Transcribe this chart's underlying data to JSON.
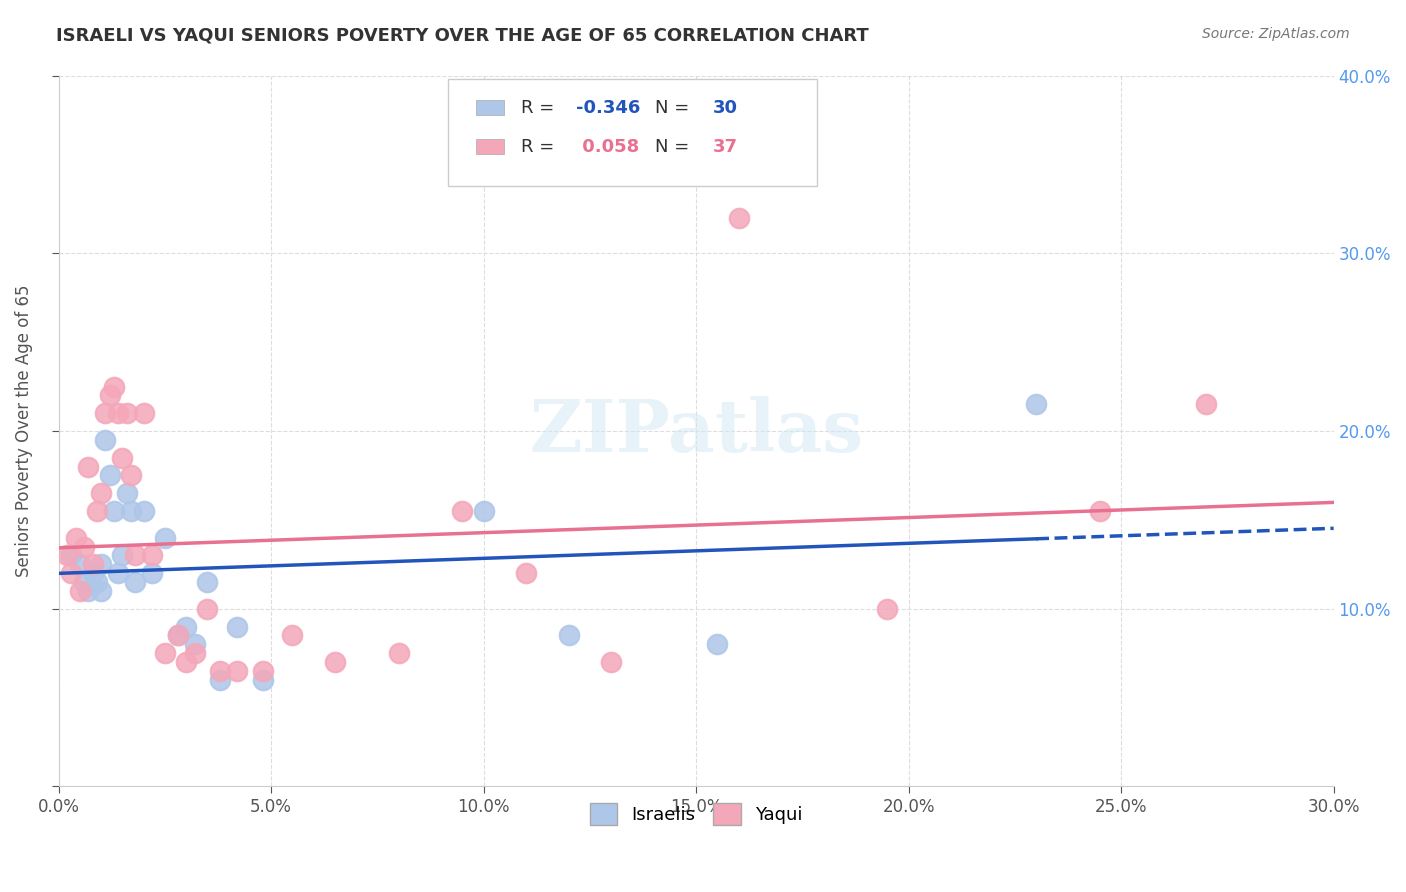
{
  "title": "ISRAELI VS YAQUI SENIORS POVERTY OVER THE AGE OF 65 CORRELATION CHART",
  "source": "Source: ZipAtlas.com",
  "xlabel_bottom": "",
  "ylabel": "Seniors Poverty Over the Age of 65",
  "xlim": [
    0,
    0.3
  ],
  "ylim": [
    0,
    0.4
  ],
  "xticks": [
    0.0,
    0.05,
    0.1,
    0.15,
    0.2,
    0.25,
    0.3
  ],
  "yticks": [
    0.0,
    0.1,
    0.2,
    0.3,
    0.4
  ],
  "ytick_labels_right": [
    "",
    "10.0%",
    "20.0%",
    "30.0%",
    "40.0%"
  ],
  "israeli_R": -0.346,
  "israeli_N": 30,
  "yaqui_R": 0.058,
  "yaqui_N": 37,
  "israeli_color": "#aec6e8",
  "yaqui_color": "#f4a7b9",
  "israeli_line_color": "#2255bb",
  "yaqui_line_color": "#e87090",
  "israeli_x": [
    0.003,
    0.005,
    0.006,
    0.007,
    0.008,
    0.009,
    0.01,
    0.01,
    0.011,
    0.012,
    0.013,
    0.014,
    0.015,
    0.016,
    0.017,
    0.018,
    0.02,
    0.022,
    0.025,
    0.028,
    0.03,
    0.032,
    0.035,
    0.038,
    0.042,
    0.048,
    0.1,
    0.12,
    0.155,
    0.23
  ],
  "israeli_y": [
    0.13,
    0.125,
    0.115,
    0.11,
    0.12,
    0.115,
    0.125,
    0.11,
    0.195,
    0.175,
    0.155,
    0.12,
    0.13,
    0.165,
    0.155,
    0.115,
    0.155,
    0.12,
    0.14,
    0.085,
    0.09,
    0.08,
    0.115,
    0.06,
    0.09,
    0.06,
    0.155,
    0.085,
    0.08,
    0.215
  ],
  "yaqui_x": [
    0.002,
    0.003,
    0.004,
    0.005,
    0.006,
    0.007,
    0.008,
    0.009,
    0.01,
    0.011,
    0.012,
    0.013,
    0.014,
    0.015,
    0.016,
    0.017,
    0.018,
    0.02,
    0.022,
    0.025,
    0.028,
    0.03,
    0.032,
    0.035,
    0.038,
    0.042,
    0.048,
    0.055,
    0.065,
    0.08,
    0.095,
    0.11,
    0.13,
    0.16,
    0.195,
    0.245,
    0.27
  ],
  "yaqui_y": [
    0.13,
    0.12,
    0.14,
    0.11,
    0.135,
    0.18,
    0.125,
    0.155,
    0.165,
    0.21,
    0.22,
    0.225,
    0.21,
    0.185,
    0.21,
    0.175,
    0.13,
    0.21,
    0.13,
    0.075,
    0.085,
    0.07,
    0.075,
    0.1,
    0.065,
    0.065,
    0.065,
    0.085,
    0.07,
    0.075,
    0.155,
    0.12,
    0.07,
    0.32,
    0.1,
    0.155,
    0.215
  ],
  "watermark": "ZIPatlas",
  "background_color": "#ffffff",
  "grid_color": "#dddddd"
}
